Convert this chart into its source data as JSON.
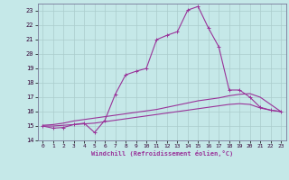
{
  "xlabel": "Windchill (Refroidissement éolien,°C)",
  "bg_color": "#c5e8e8",
  "grid_color": "#aacccc",
  "line_color": "#993399",
  "xlim": [
    -0.5,
    23.5
  ],
  "ylim": [
    14.0,
    23.5
  ],
  "yticks": [
    14,
    15,
    16,
    17,
    18,
    19,
    20,
    21,
    22,
    23
  ],
  "xticks": [
    0,
    1,
    2,
    3,
    4,
    5,
    6,
    7,
    8,
    9,
    10,
    11,
    12,
    13,
    14,
    15,
    16,
    17,
    18,
    19,
    20,
    21,
    22,
    23
  ],
  "line1_x": [
    0,
    1,
    2,
    3,
    4,
    5,
    6,
    7,
    8,
    9,
    10,
    11,
    12,
    13,
    14,
    15,
    16,
    17,
    18,
    19,
    20,
    21,
    22,
    23
  ],
  "line1_y": [
    15.0,
    14.85,
    14.9,
    15.1,
    15.2,
    14.55,
    15.4,
    17.2,
    18.55,
    18.8,
    19.0,
    21.0,
    21.3,
    21.55,
    23.05,
    23.3,
    21.8,
    20.5,
    17.5,
    17.5,
    17.0,
    16.3,
    16.1,
    16.0
  ],
  "line2_x": [
    0,
    1,
    2,
    3,
    4,
    5,
    6,
    7,
    8,
    9,
    10,
    11,
    12,
    13,
    14,
    15,
    16,
    17,
    18,
    19,
    20,
    21,
    22,
    23
  ],
  "line2_y": [
    15.05,
    15.1,
    15.2,
    15.35,
    15.45,
    15.55,
    15.65,
    15.75,
    15.85,
    15.95,
    16.05,
    16.15,
    16.3,
    16.45,
    16.6,
    16.75,
    16.85,
    16.95,
    17.1,
    17.2,
    17.25,
    17.0,
    16.5,
    16.0
  ],
  "line3_x": [
    0,
    1,
    2,
    3,
    4,
    5,
    6,
    7,
    8,
    9,
    10,
    11,
    12,
    13,
    14,
    15,
    16,
    17,
    18,
    19,
    20,
    21,
    22,
    23
  ],
  "line3_y": [
    15.0,
    15.0,
    15.05,
    15.1,
    15.15,
    15.2,
    15.3,
    15.4,
    15.5,
    15.6,
    15.7,
    15.8,
    15.9,
    16.0,
    16.1,
    16.2,
    16.3,
    16.4,
    16.5,
    16.55,
    16.5,
    16.25,
    16.1,
    16.0
  ]
}
